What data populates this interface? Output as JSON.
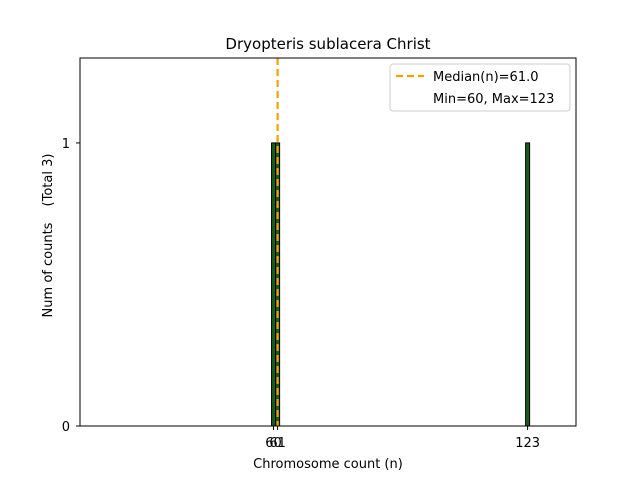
{
  "chart_data": {
    "type": "bar",
    "title": "Dryopteris sublacera Christ",
    "xlabel": "Chromosome count (n)",
    "ylabel": "Num of counts",
    "ylabel_total": "(Total 3)",
    "xlim": [
      12,
      135
    ],
    "ylim": [
      0,
      1.3
    ],
    "x_ticks": [
      60,
      61,
      123
    ],
    "y_ticks": [
      0,
      1
    ],
    "bars": [
      {
        "x": 60,
        "value": 1
      },
      {
        "x": 61,
        "value": 1
      },
      {
        "x": 123,
        "value": 1
      }
    ],
    "bar_width": 1,
    "median": 61,
    "median_label": "Median(n)=61.0",
    "range_label": "Min=60, Max=123",
    "legend_position": "top-right",
    "colors": {
      "bar_fill": "#1a5c1a",
      "bar_edge": "#000000",
      "median_line": "#f5a000"
    }
  }
}
